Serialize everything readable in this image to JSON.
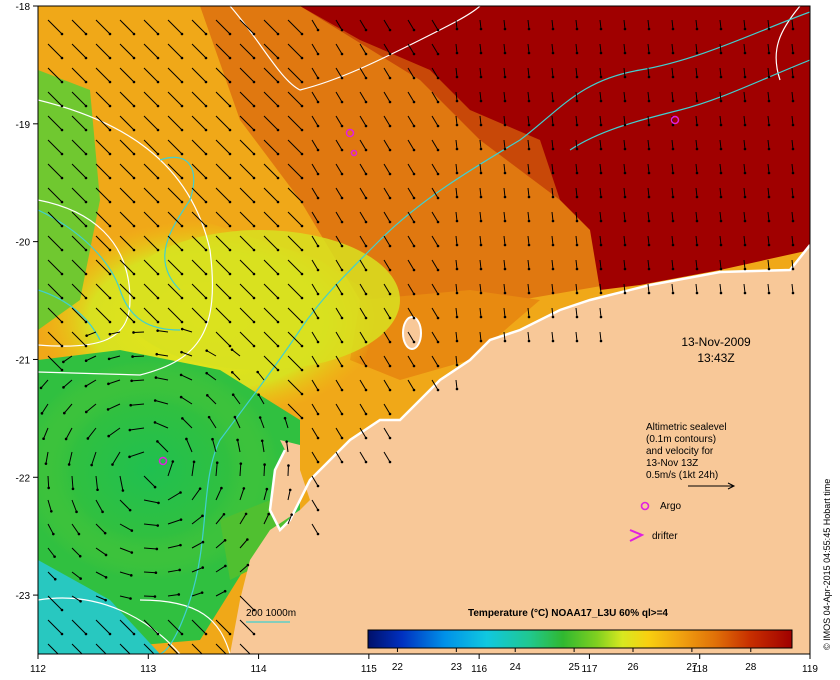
{
  "axes": {
    "x_ticks": [
      "112",
      "113",
      "114",
      "115",
      "116",
      "117",
      "118",
      "119"
    ],
    "y_ticks": [
      "-18",
      "-19",
      "-20",
      "-21",
      "-22",
      "-23"
    ]
  },
  "timestamp": {
    "date": "13-Nov-2009",
    "time": "13:43Z"
  },
  "legend": {
    "lines": [
      "Altimetric sealevel",
      "(0.1m contours)",
      "and velocity for",
      "13-Nov 13Z",
      "0.5m/s (1kt 24h)"
    ],
    "argo_label": "Argo",
    "drifter_label": "drifter",
    "depth_label": "200  1000m"
  },
  "colorbar": {
    "title": "Temperature (°C) NOAA17_L3U 60% ql>=4",
    "ticks": [
      "22",
      "23",
      "24",
      "25",
      "26",
      "27",
      "28"
    ],
    "colors": [
      "#00106a",
      "#0038c8",
      "#0090e8",
      "#10c8e0",
      "#20c890",
      "#30b830",
      "#80d020",
      "#d8e820",
      "#f8d010",
      "#f0a010",
      "#e07008",
      "#c83000",
      "#a00000"
    ]
  },
  "credit": "© IMOS 04-Apr-2015 04:55:45 Hobart time",
  "colors": {
    "land": "#f8c898",
    "hot": "#a00000",
    "contour_sealevel": "#ffffff",
    "contour_bathy": "#40d0d0",
    "argo": "#e020e0"
  }
}
